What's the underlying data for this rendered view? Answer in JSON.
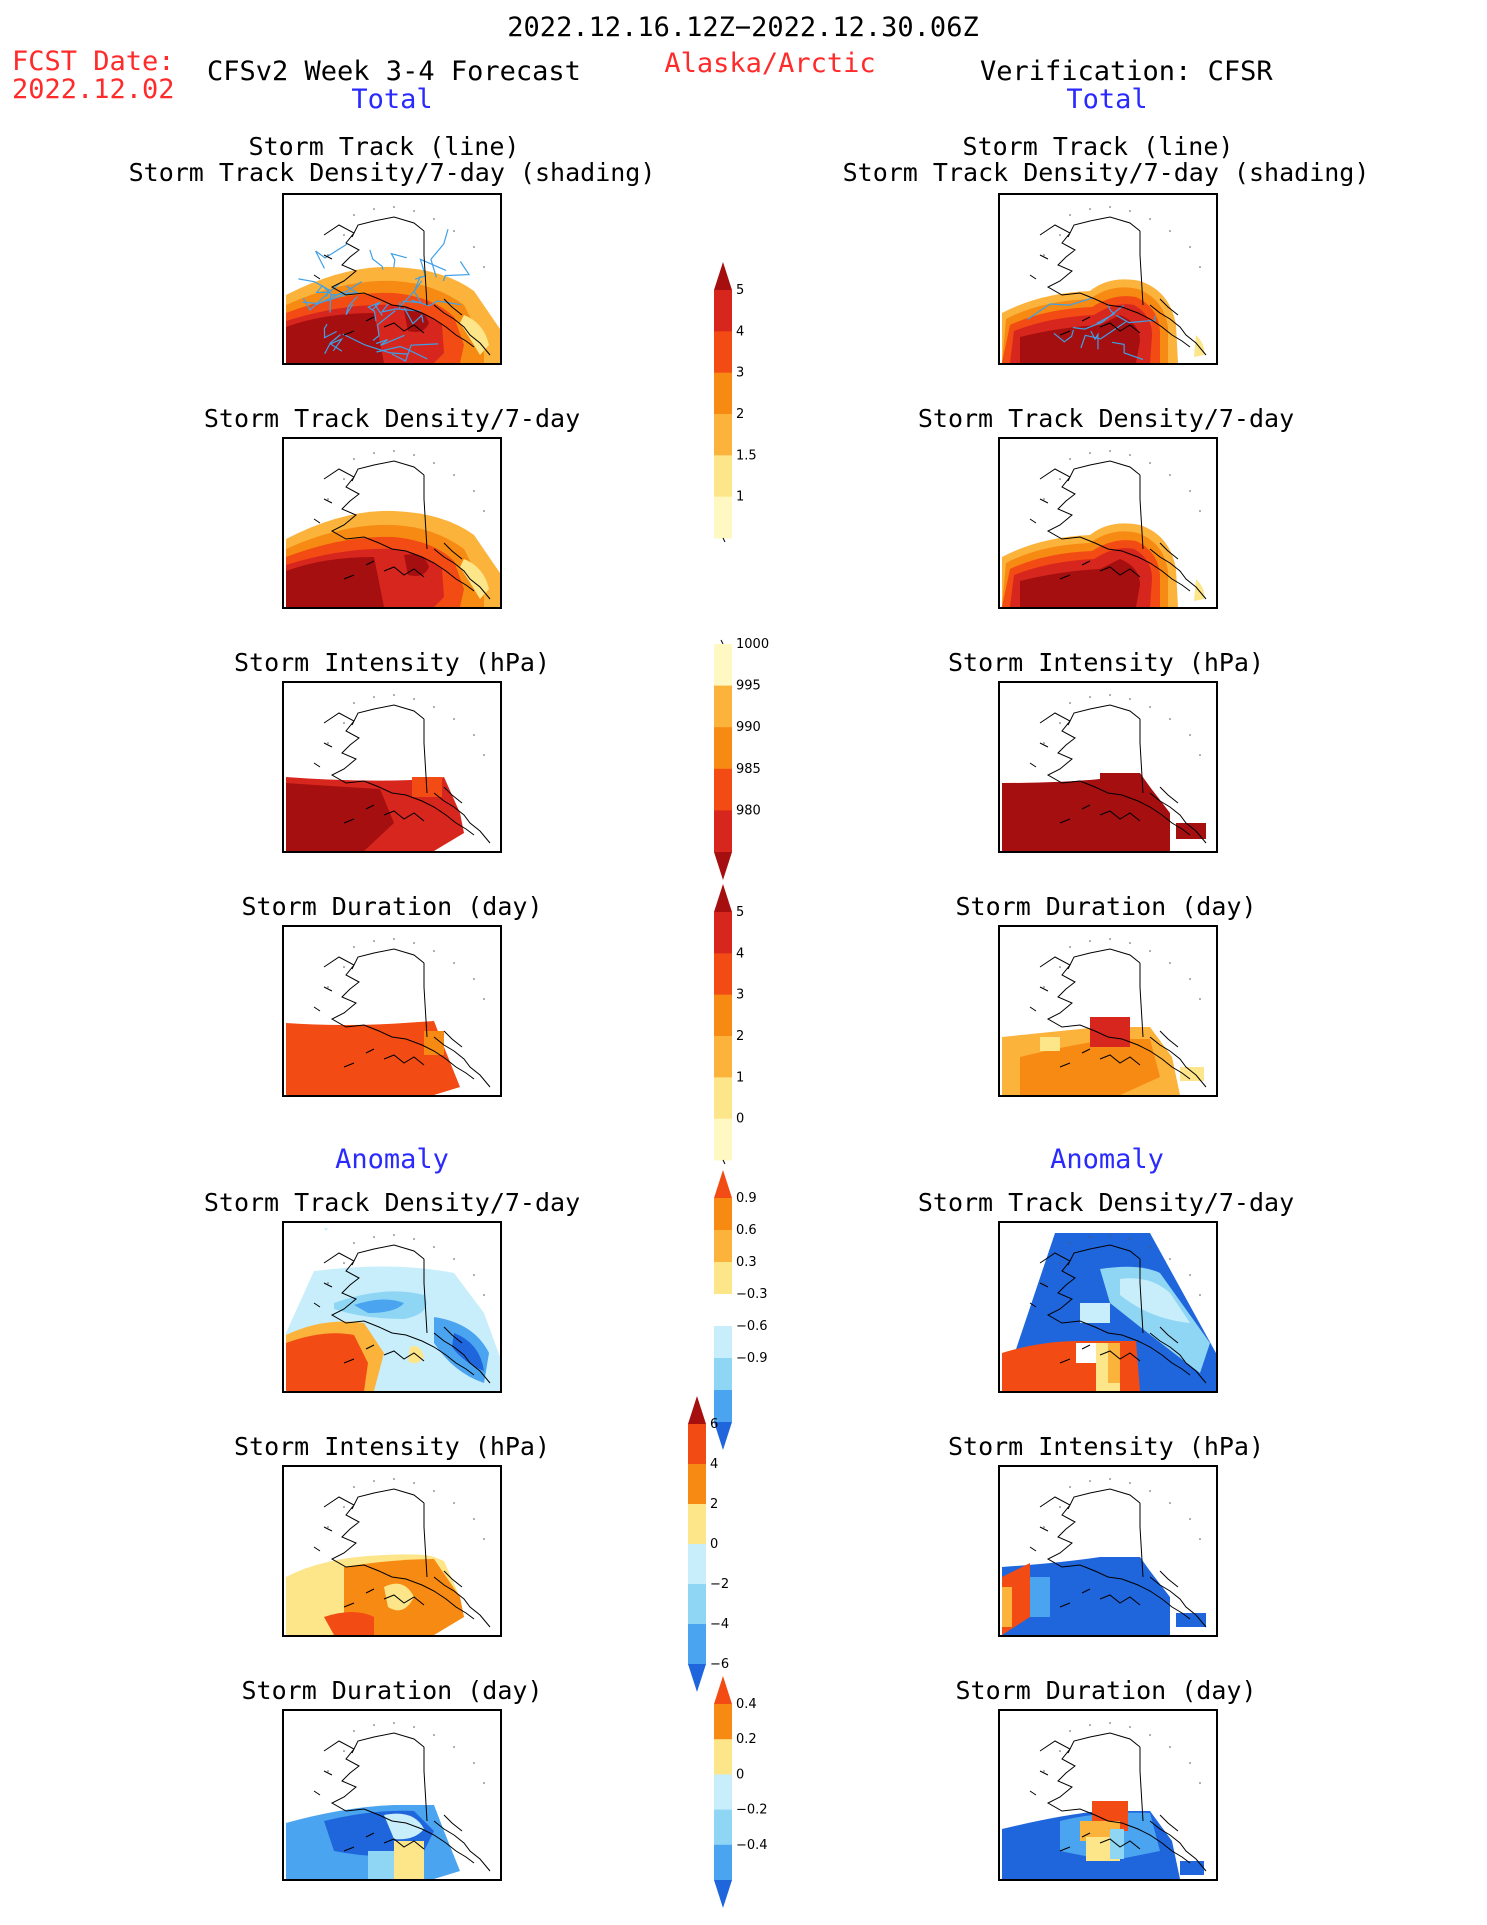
{
  "header": {
    "date_range": "2022.12.16.12Z−2022.12.30.06Z",
    "fcst_label": "FCST Date:",
    "fcst_date": "2022.12.02",
    "model": "CFSv2 Week 3-4 Forecast",
    "region": "Alaska/Arctic",
    "verification": "Verification: CFSR"
  },
  "sections": {
    "total_left": "Total",
    "total_right": "Total",
    "anomaly_left": "Anomaly",
    "anomaly_right": "Anomaly"
  },
  "colors": {
    "dark_red": "#a50f0f",
    "red": "#d7261e",
    "red_orange": "#f24b14",
    "orange": "#f78a12",
    "light_orange": "#fbb33b",
    "yellow": "#fde58a",
    "pale_yellow": "#fff8c2",
    "white": "#ffffff",
    "light_blue": "#c8eefc",
    "sky_blue": "#8fd6f5",
    "mid_blue": "#4aa4ef",
    "blue": "#1f66dd",
    "track_line": "#3fa0e8"
  },
  "chart_data": [
    {
      "type": "heatmap",
      "column": "forecast",
      "title_lines": [
        "Storm Track (line)",
        "Storm Track Density/7-day (shading)"
      ],
      "overlay": "storm-track-lines"
    },
    {
      "type": "heatmap",
      "column": "verification",
      "title_lines": [
        "Storm Track (line)",
        "Storm Track Density/7-day (shading)"
      ],
      "overlay": "storm-track-lines"
    },
    {
      "type": "heatmap",
      "column": "forecast",
      "title_lines": [
        "Storm Track Density/7-day"
      ]
    },
    {
      "type": "heatmap",
      "column": "verification",
      "title_lines": [
        "Storm Track Density/7-day"
      ]
    },
    {
      "type": "heatmap",
      "column": "forecast",
      "title_lines": [
        "Storm Intensity (hPa)"
      ]
    },
    {
      "type": "heatmap",
      "column": "verification",
      "title_lines": [
        "Storm Intensity (hPa)"
      ]
    },
    {
      "type": "heatmap",
      "column": "forecast",
      "title_lines": [
        "Storm Duration (day)"
      ]
    },
    {
      "type": "heatmap",
      "column": "verification",
      "title_lines": [
        "Storm Duration (day)"
      ]
    },
    {
      "type": "heatmap",
      "column": "forecast",
      "title_lines": [
        "Storm Track Density/7-day"
      ]
    },
    {
      "type": "heatmap",
      "column": "verification",
      "title_lines": [
        "Storm Track Density/7-day"
      ]
    },
    {
      "type": "heatmap",
      "column": "forecast",
      "title_lines": [
        "Storm Intensity (hPa)"
      ]
    },
    {
      "type": "heatmap",
      "column": "verification",
      "title_lines": [
        "Storm Intensity (hPa)"
      ]
    },
    {
      "type": "heatmap",
      "column": "forecast",
      "title_lines": [
        "Storm Duration (day)"
      ]
    },
    {
      "type": "heatmap",
      "column": "verification",
      "title_lines": [
        "Storm Duration (day)"
      ]
    }
  ],
  "colorbars": [
    {
      "name": "track-density-total",
      "labels": [
        "5",
        "4",
        "3",
        "2",
        "1.5",
        "1"
      ],
      "arrow_top": true,
      "arrow_bottom": false,
      "colors": [
        "#a50f0f",
        "#d7261e",
        "#f24b14",
        "#f78a12",
        "#fbb33b",
        "#fde58a",
        "#fff8c2"
      ]
    },
    {
      "name": "intensity-total",
      "labels": [
        "1000",
        "995",
        "990",
        "985",
        "980"
      ],
      "arrow_top": false,
      "arrow_bottom": true,
      "colors": [
        "#fff8c2",
        "#fbb33b",
        "#f78a12",
        "#f24b14",
        "#d7261e",
        "#a50f0f"
      ]
    },
    {
      "name": "duration-total",
      "labels": [
        "5",
        "4",
        "3",
        "2",
        "1",
        "0"
      ],
      "arrow_top": true,
      "arrow_bottom": false,
      "colors": [
        "#a50f0f",
        "#d7261e",
        "#f24b14",
        "#f78a12",
        "#fbb33b",
        "#fde58a",
        "#fff8c2"
      ]
    },
    {
      "name": "track-density-anomaly",
      "labels": [
        "0.9",
        "0.6",
        "0.3",
        "−0.3",
        "−0.6",
        "−0.9"
      ],
      "arrow_top": true,
      "arrow_bottom": true,
      "colors": [
        "#f24b14",
        "#f78a12",
        "#fbb33b",
        "#fde58a",
        "#ffffff",
        "#c8eefc",
        "#8fd6f5",
        "#4aa4ef",
        "#1f66dd"
      ]
    },
    {
      "name": "intensity-anomaly",
      "labels": [
        "6",
        "4",
        "2",
        "0",
        "−2",
        "−4",
        "−6"
      ],
      "arrow_top": true,
      "arrow_bottom": true,
      "colors": [
        "#a50f0f",
        "#f24b14",
        "#f78a12",
        "#fde58a",
        "#c8eefc",
        "#8fd6f5",
        "#4aa4ef",
        "#1f66dd"
      ]
    },
    {
      "name": "duration-anomaly",
      "labels": [
        "0.4",
        "0.2",
        "0",
        "−0.2",
        "−0.4"
      ],
      "arrow_top": true,
      "arrow_bottom": true,
      "colors": [
        "#f24b14",
        "#f78a12",
        "#fde58a",
        "#c8eefc",
        "#8fd6f5",
        "#4aa4ef",
        "#1f66dd"
      ]
    }
  ]
}
